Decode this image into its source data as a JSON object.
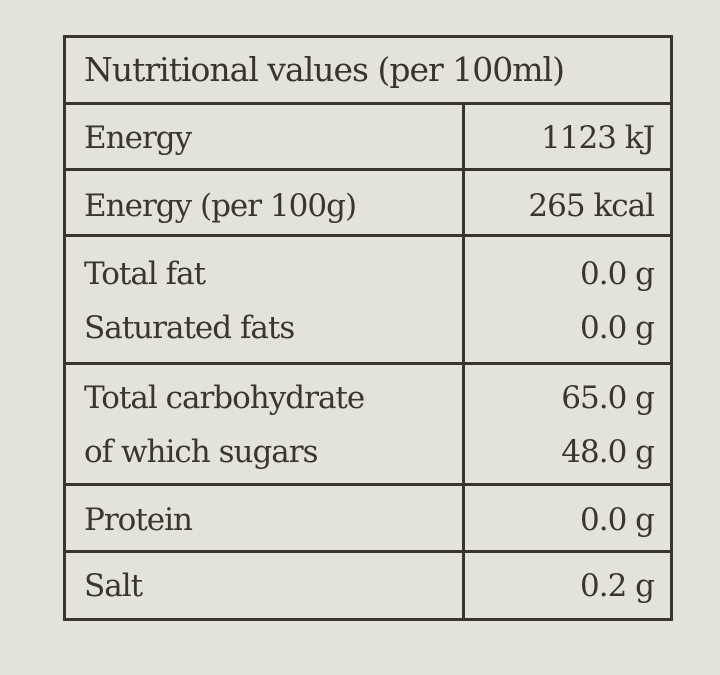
{
  "title": "Nutritional values (per 100ml)",
  "rows": [
    {
      "label": "Energy",
      "value": "1123 kJ"
    },
    {
      "label": "Energy (per 100g)",
      "value": "265 kcal"
    },
    {
      "label": "Total fat",
      "value": "0.0 g"
    },
    {
      "label": "Saturated fats",
      "value": "0.0 g"
    },
    {
      "label": "Total carbohydrate",
      "value": "65.0 g"
    },
    {
      "label": "of which sugars",
      "value": "48.0 g"
    },
    {
      "label": "Protein",
      "value": "0.0 g"
    },
    {
      "label": "Salt",
      "value": "0.2 g"
    }
  ],
  "colors": {
    "background": "#e3e3db",
    "text": "#3b352f",
    "rule": "#3a3430"
  }
}
